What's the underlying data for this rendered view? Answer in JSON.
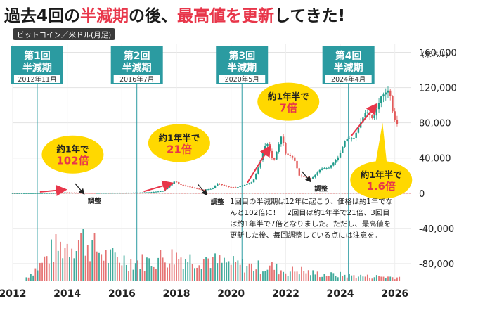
{
  "title": {
    "parts": [
      {
        "text": "過去4回の",
        "style": "plain"
      },
      {
        "text": "半減期",
        "style": "red"
      },
      {
        "text": "の後、",
        "style": "plain"
      },
      {
        "text": "最高値を更新",
        "style": "red"
      },
      {
        "text": "してきた!",
        "style": "plain"
      }
    ]
  },
  "badge": "ビットコイン／米ドル(月足)",
  "unit": "(米ドル)",
  "colors": {
    "teal": "#2b9ba1",
    "up": "#1e9b8a",
    "down": "#e25a5a",
    "highlight": "#ffd800",
    "label_red": "#e8364a",
    "arrow": "#e8364a"
  },
  "halvings": [
    {
      "label1": "第1回",
      "label2": "半減期",
      "date": "2012年11月",
      "x": 2012.9
    },
    {
      "label1": "第2回",
      "label2": "半減期",
      "date": "2016年7月",
      "x": 2016.55
    },
    {
      "label1": "第3回",
      "label2": "半減期",
      "date": "2020年5月",
      "x": 2020.4
    },
    {
      "label1": "第4回",
      "label2": "半減期",
      "date": "2024年4月",
      "x": 2024.3
    }
  ],
  "callouts": [
    {
      "line1": "約1年で",
      "line2": "102倍",
      "x": 2014.2,
      "y": 44000
    },
    {
      "line1": "約1年半で",
      "line2": "21倍",
      "x": 2018.1,
      "y": 57000
    },
    {
      "line1": "約1年半で",
      "line2": "7倍",
      "x": 2022.1,
      "y": 104000
    },
    {
      "line1": "約1年半で",
      "line2": "1.6倍",
      "x": 2025.5,
      "y": 15000
    }
  ],
  "adjust_label": "調整",
  "adjustments": [
    {
      "x": 2014.7,
      "y": -5000
    },
    {
      "x": 2019.2,
      "y": -6000
    },
    {
      "x": 2023.0,
      "y": 9000
    }
  ],
  "note": [
    "1回目の半減期は12年に起こり、価格は約1年でな",
    "んと102倍に！　2回目は約1年半で21倍、3回目",
    "は約1年半で7倍となりました。ただし、最高値を",
    "更新した後、毎回調整している点には注意を。"
  ],
  "chart_data": {
    "type": "line",
    "title": "過去4回の半減期の後、最高値を更新してきた!",
    "subtitle": "ビットコイン／米ドル(月足)",
    "ylabel": "(米ドル)",
    "xlabel": "",
    "xlim": [
      2012,
      2026.6
    ],
    "ylim": [
      -100000,
      170000
    ],
    "yticks": [
      160000,
      120000,
      80000,
      40000,
      0,
      -40000,
      -80000
    ],
    "ytick_labels": [
      "160,000",
      "120,000",
      "80,000",
      "40,000",
      "0",
      "-40,000",
      "-80,000"
    ],
    "xticks": [
      2012,
      2014,
      2016,
      2018,
      2020,
      2022,
      2024,
      2026
    ],
    "grid": true,
    "series": [
      {
        "kind": "price",
        "x": [
          2012.0,
          2012.5,
          2013.0,
          2013.5,
          2013.9,
          2014.3,
          2015.0,
          2016.0,
          2016.6,
          2017.0,
          2017.5,
          2017.95,
          2018.1,
          2018.5,
          2018.95,
          2019.3,
          2019.5,
          2019.9,
          2020.2,
          2020.5,
          2020.8,
          2021.0,
          2021.3,
          2021.55,
          2021.85,
          2022.0,
          2022.3,
          2022.5,
          2022.95,
          2023.3,
          2023.6,
          2023.95,
          2024.2,
          2024.5,
          2024.95,
          2025.2,
          2025.5,
          2025.8,
          2025.95,
          2026.1
        ],
        "y": [
          5,
          7,
          100,
          100,
          1000,
          500,
          250,
          430,
          650,
          1000,
          2500,
          14000,
          10000,
          7000,
          3700,
          5000,
          11000,
          7200,
          6500,
          9500,
          13000,
          29000,
          59000,
          35000,
          66000,
          45000,
          40000,
          20000,
          16500,
          28000,
          29000,
          42000,
          62000,
          63000,
          94000,
          84000,
          110000,
          118000,
          86000,
          78000
        ]
      },
      {
        "kind": "volume",
        "x": [
          2012.5,
          2013.0,
          2013.5,
          2014.0,
          2014.5,
          2015.0,
          2015.5,
          2016.0,
          2016.5,
          2017.0,
          2017.5,
          2018.0,
          2018.5,
          2019.0,
          2019.5,
          2020.0,
          2020.5,
          2021.0,
          2021.5,
          2022.0,
          2022.5,
          2023.0,
          2023.5,
          2024.0,
          2024.5,
          2025.0,
          2025.5,
          2026.0
        ],
        "y": [
          5,
          20,
          40,
          45,
          55,
          42,
          30,
          28,
          24,
          25,
          30,
          32,
          28,
          30,
          24,
          22,
          20,
          18,
          18,
          12,
          14,
          10,
          8,
          8,
          7,
          6,
          6,
          5
        ]
      }
    ]
  }
}
